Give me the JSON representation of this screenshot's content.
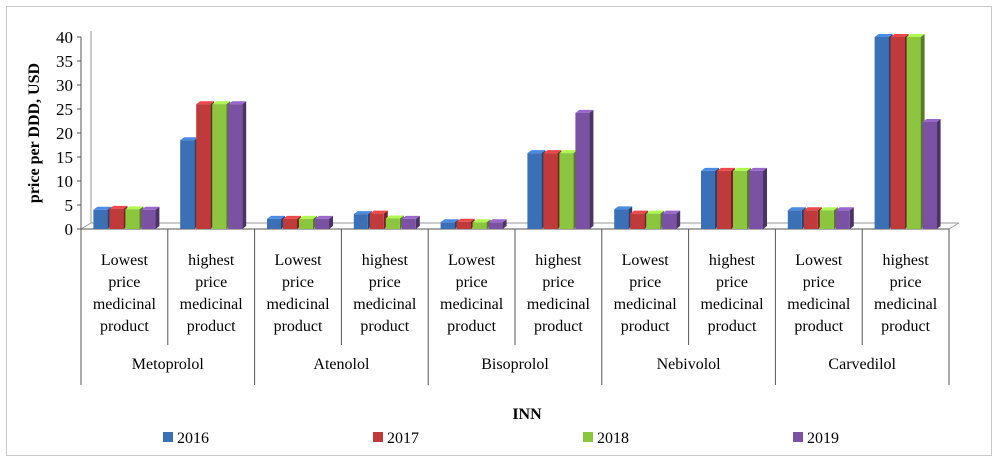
{
  "chart_data": {
    "type": "bar",
    "title": "",
    "ylabel": "price per DDD, USD",
    "xlabel": "INN",
    "ylim": [
      0,
      40
    ],
    "yticks": [
      0,
      5,
      10,
      15,
      20,
      25,
      30,
      35,
      40
    ],
    "groups": [
      {
        "name": "Metoprolol",
        "categories": [
          "Lowest price medicinal product",
          "highest price medicinal product"
        ]
      },
      {
        "name": "Atenolol",
        "categories": [
          "Lowest price medicinal product",
          "highest price medicinal product"
        ]
      },
      {
        "name": "Bisoprolol",
        "categories": [
          "Lowest price medicinal product",
          "highest price medicinal product"
        ]
      },
      {
        "name": "Nebivolol",
        "categories": [
          "Lowest price medicinal product",
          "highest price medicinal product"
        ]
      },
      {
        "name": "Carvedilol",
        "categories": [
          "Lowest price medicinal product",
          "highest price medicinal product"
        ]
      }
    ],
    "category_lines": {
      "lowest": [
        "Lowest",
        "price",
        "medicinal",
        "product"
      ],
      "highest": [
        "highest",
        "price",
        "medicinal",
        "product"
      ]
    },
    "series": [
      {
        "name": "2016",
        "color": "#3b6fb6",
        "values": [
          4.0,
          18.5,
          2.1,
          3.1,
          1.4,
          15.8,
          4.1,
          12.1,
          3.9,
          40.0
        ]
      },
      {
        "name": "2017",
        "color": "#c0393b",
        "values": [
          4.2,
          26.0,
          2.1,
          3.2,
          1.5,
          15.8,
          3.2,
          12.1,
          3.9,
          40.0
        ]
      },
      {
        "name": "2018",
        "color": "#8cc63f",
        "values": [
          4.1,
          26.0,
          2.1,
          2.2,
          1.4,
          15.8,
          3.2,
          12.1,
          3.9,
          40.0
        ]
      },
      {
        "name": "2019",
        "color": "#7b52a3",
        "values": [
          4.0,
          26.0,
          2.1,
          2.1,
          1.4,
          24.2,
          3.2,
          12.1,
          3.9,
          22.3
        ]
      }
    ],
    "legend_position": "bottom",
    "grid": false
  }
}
